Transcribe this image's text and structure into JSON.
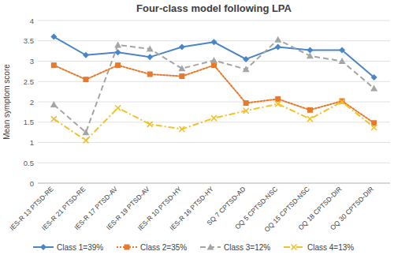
{
  "chart_data": {
    "type": "line",
    "title": "Four-class model following LPA",
    "y_label": "Mean symptom score",
    "categories": [
      "IES-R 13 PTSD-RE",
      "IES-R 21 PTSD-RE",
      "IES-R 17 PTSD-AV",
      "IES-R 19 PTSD-AV",
      "IES-R 10 PTSD-HY",
      "IES-R 16 PTSD-HY",
      "SQ 7 CPTSD-AD",
      "OQ 5 CPTSD-NSC",
      "OQ 15 CPTSD-NSC",
      "OQ 18 CPTSD-DIR",
      "OQ 30 CPTSD-DIR"
    ],
    "series": [
      {
        "name": "Class 1=39%",
        "color": "#4a86c5",
        "marker": "diamond",
        "line_style": "solid",
        "values": [
          3.6,
          3.15,
          3.22,
          3.1,
          3.35,
          3.47,
          3.05,
          3.35,
          3.27,
          3.27,
          2.6
        ]
      },
      {
        "name": "Class 2=35%",
        "color": "#e8782a",
        "marker": "square",
        "line_style": "dotted",
        "values": [
          2.9,
          2.55,
          2.9,
          2.68,
          2.63,
          2.9,
          1.97,
          2.07,
          1.8,
          2.02,
          1.48
        ]
      },
      {
        "name": "Class 3=12%",
        "color": "#a5a5a5",
        "marker": "triangle",
        "line_style": "dashed",
        "values": [
          1.93,
          1.25,
          3.4,
          3.3,
          2.82,
          3.02,
          2.8,
          3.53,
          3.13,
          3.0,
          2.33
        ]
      },
      {
        "name": "Class 4=13%",
        "color": "#f2c12e",
        "marker": "x",
        "line_style": "dashdot",
        "values": [
          1.58,
          1.05,
          1.85,
          1.45,
          1.33,
          1.6,
          1.78,
          1.95,
          1.58,
          2.0,
          1.37
        ]
      }
    ],
    "ylim": [
      0,
      4
    ],
    "yticks": [
      0,
      0.5,
      1,
      1.5,
      2,
      2.5,
      3,
      3.5,
      4
    ],
    "grid": true,
    "legend": "bottom"
  }
}
